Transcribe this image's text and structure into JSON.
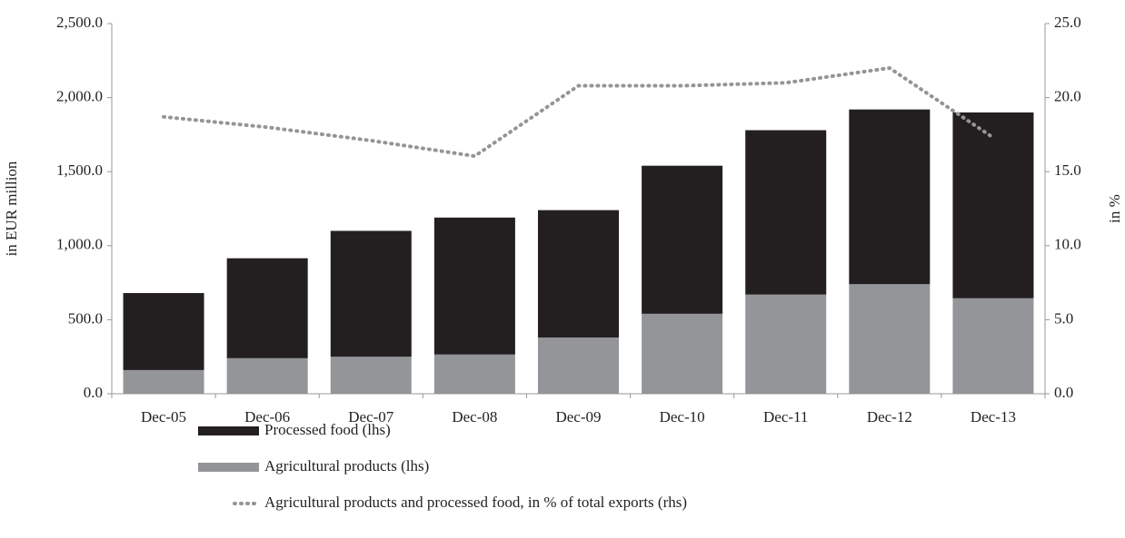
{
  "chart_data": {
    "type": "bar",
    "y_label": "in EUR million",
    "y2_label": "in %",
    "categories": [
      "Dec-05",
      "Dec-06",
      "Dec-07",
      "Dec-08",
      "Dec-09",
      "Dec-10",
      "Dec-11",
      "Dec-12",
      "Dec-13"
    ],
    "stacked": true,
    "series": [
      {
        "name": "Processed food (lhs)",
        "color": "#231f20",
        "values": [
          520,
          675,
          850,
          925,
          860,
          1000,
          1110,
          1180,
          1255
        ]
      },
      {
        "name": "Agricultural products (lhs)",
        "color": "#939598",
        "values": [
          160,
          240,
          250,
          265,
          380,
          540,
          670,
          740,
          645
        ]
      },
      {
        "name": "Agricultural products and processed food, in % of total exports (rhs)",
        "type": "line",
        "color": "#939598",
        "axis": "y2",
        "values": [
          18.7,
          18.0,
          17.1,
          16.05,
          20.8,
          20.8,
          21.0,
          22.0,
          17.3
        ]
      }
    ],
    "ylim": [
      0,
      2500
    ],
    "yticks": [
      {
        "value": 0,
        "label": "0.0"
      },
      {
        "value": 500,
        "label": "500.0"
      },
      {
        "value": 1000,
        "label": "1,000.0"
      },
      {
        "value": 1500,
        "label": "1,500.0"
      },
      {
        "value": 2000,
        "label": "2,000.0"
      },
      {
        "value": 2500,
        "label": "2,500.0"
      }
    ],
    "y2lim": [
      0,
      25
    ],
    "y2ticks": [
      {
        "value": 0,
        "label": "0.0"
      },
      {
        "value": 5,
        "label": "5.0"
      },
      {
        "value": 10,
        "label": "10.0"
      },
      {
        "value": 15,
        "label": "15.0"
      },
      {
        "value": 20,
        "label": "20.0"
      },
      {
        "value": 25,
        "label": "25.0"
      }
    ],
    "legend": "bottom"
  }
}
